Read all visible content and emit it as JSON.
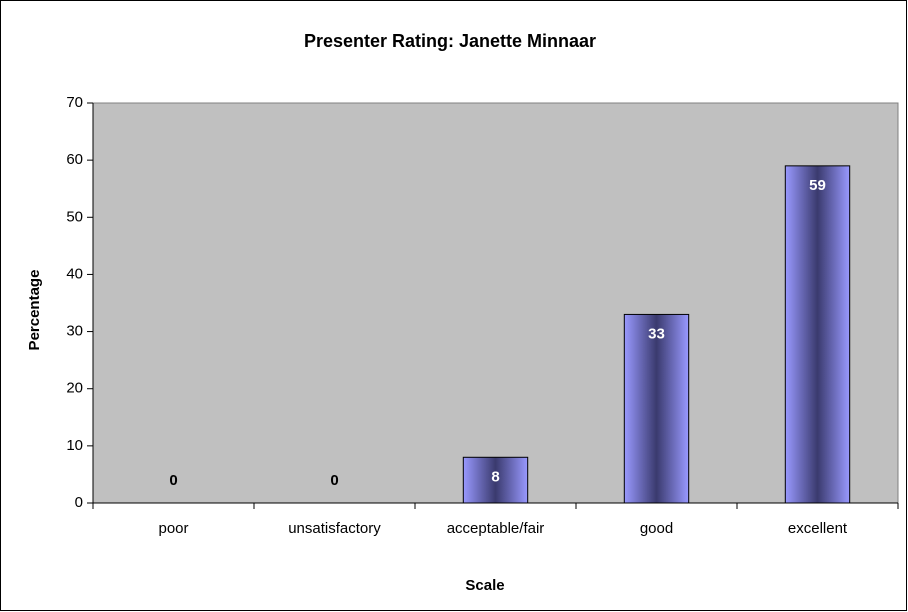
{
  "chart_data": {
    "type": "bar",
    "title": "Presenter Rating: Janette Minnaar",
    "x_label": "Scale",
    "y_label": "Percentage",
    "categories": [
      "poor",
      "unsatisfactory",
      "acceptable/fair",
      "good",
      "excellent"
    ],
    "values": [
      0,
      0,
      8,
      33,
      59
    ],
    "color": "#9999ff",
    "ylim": [
      0,
      70
    ],
    "yticks": [
      0,
      10,
      20,
      30,
      40,
      50,
      60,
      70
    ],
    "grid": false
  }
}
